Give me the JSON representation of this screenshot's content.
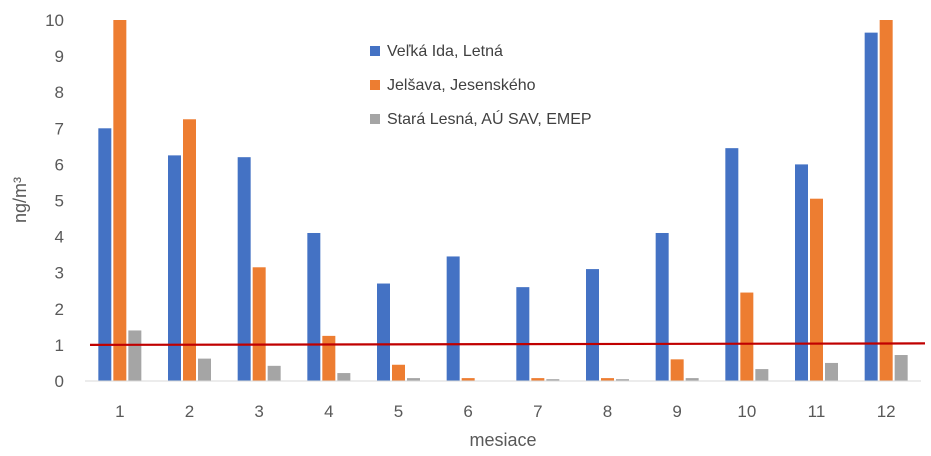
{
  "chart_data": {
    "type": "bar",
    "title": "",
    "xlabel": "mesiace",
    "ylabel": "ng/m³",
    "ylim": [
      0,
      10
    ],
    "yticks": [
      0,
      1,
      2,
      3,
      4,
      5,
      6,
      7,
      8,
      9,
      10
    ],
    "categories": [
      "1",
      "2",
      "3",
      "4",
      "5",
      "6",
      "7",
      "8",
      "9",
      "10",
      "11",
      "12"
    ],
    "series": [
      {
        "name": "Veľká Ida, Letná",
        "color": "#4472C4",
        "values": [
          7.0,
          6.25,
          6.2,
          4.1,
          2.7,
          3.45,
          2.6,
          3.1,
          4.1,
          6.45,
          6.0,
          9.65
        ]
      },
      {
        "name": "Jelšava, Jesenského",
        "color": "#ED7D31",
        "values": [
          10.0,
          7.25,
          3.15,
          1.25,
          0.45,
          0.08,
          0.08,
          0.08,
          0.6,
          2.45,
          5.05,
          10.0
        ]
      },
      {
        "name": "Stará Lesná, AÚ SAV, EMEP",
        "color": "#A5A5A5",
        "values": [
          1.4,
          0.62,
          0.42,
          0.22,
          0.08,
          0.0,
          0.05,
          0.05,
          0.08,
          0.33,
          0.5,
          0.72
        ]
      }
    ],
    "reference_line": {
      "value": 1,
      "color": "#C00000"
    },
    "grid": false,
    "legend_position": "top-center, inside plot"
  }
}
